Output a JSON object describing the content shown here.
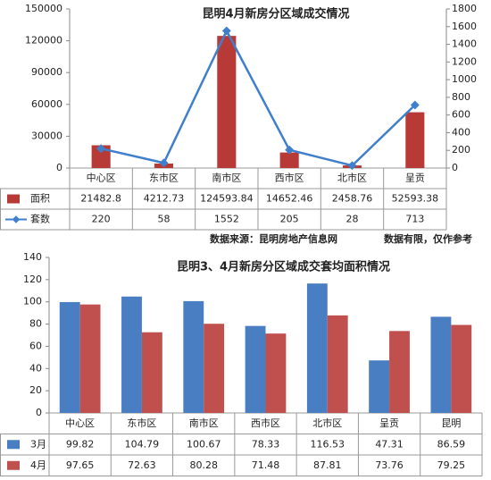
{
  "chart_data": [
    {
      "type": "bar",
      "title": "昆明4月新房分区域成交情况",
      "categories": [
        "中心区",
        "东市区",
        "南市区",
        "西市区",
        "北市区",
        "呈贡"
      ],
      "series": [
        {
          "name": "面积",
          "color": "#b83a37",
          "values": [
            21482.8,
            4212.73,
            124593.84,
            14652.46,
            2458.76,
            52593.38
          ]
        },
        {
          "name": "套数",
          "color": "#3f7fcb",
          "type": "line",
          "axis": "y2",
          "values": [
            220,
            58,
            1552,
            205,
            28,
            713
          ]
        }
      ],
      "ylim": [
        0,
        150000
      ],
      "yticks": [
        0,
        30000,
        60000,
        90000,
        120000,
        150000
      ],
      "y2lim": [
        0,
        1800
      ],
      "y2ticks": [
        0,
        200,
        400,
        600,
        800,
        1000,
        1200,
        1400,
        1600,
        1800
      ],
      "grid": false,
      "source": "数据来源：昆明房地产信息网",
      "note": "数据有限，仅作参考"
    },
    {
      "type": "bar",
      "title": "昆明3、4月新房分区域成交套均面积情况",
      "categories": [
        "中心区",
        "东市区",
        "南市区",
        "西市区",
        "北市区",
        "呈贡",
        "昆明"
      ],
      "series": [
        {
          "name": "3月",
          "color": "#4a7ec2",
          "values": [
            99.82,
            104.79,
            100.67,
            78.33,
            116.53,
            47.31,
            86.59
          ]
        },
        {
          "name": "4月",
          "color": "#c0504d",
          "values": [
            97.65,
            72.63,
            80.28,
            71.48,
            87.81,
            73.76,
            79.25
          ]
        }
      ],
      "ylim": [
        0,
        140
      ],
      "yticks": [
        0,
        20,
        40,
        60,
        80,
        100,
        120,
        140
      ],
      "grid": false
    }
  ]
}
